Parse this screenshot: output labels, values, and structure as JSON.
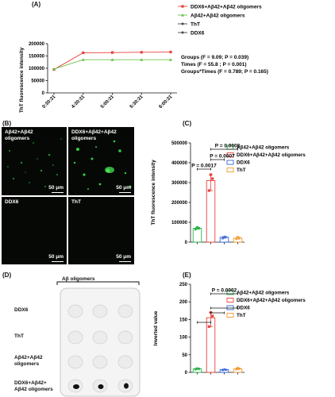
{
  "panels": {
    "a": "(A)",
    "b": "(B)",
    "c": "(C)",
    "d": "(D)",
    "e": "(E)"
  },
  "chart_data": [
    {
      "type": "line",
      "panel": "A",
      "categories": [
        "0:30:31",
        "4:30:31",
        "5:00:31",
        "5:30:31",
        "6:00:31"
      ],
      "ylabel": "ThT fluorescence intensity",
      "ylim": [
        0,
        200000
      ],
      "yticks": [
        "0",
        "50000",
        "100000",
        "150000",
        "200000"
      ],
      "series": [
        {
          "name": "DDX6+Aβ42+Aβ42 oligomers",
          "color": "#e8413c",
          "marker": "square",
          "values": [
            95000,
            163000,
            164000,
            165000,
            166000
          ]
        },
        {
          "name": "Aβ42+Aβ42 oligomers",
          "color": "#6cc24a",
          "marker": "triangle",
          "values": [
            97000,
            135000,
            135000,
            135000,
            135000
          ]
        },
        {
          "name": "ThT",
          "color": "#444444",
          "marker": "dot",
          "values": [
            null,
            null,
            null,
            null,
            null
          ]
        },
        {
          "name": "DDX6",
          "color": "#444444",
          "marker": "dot",
          "values": [
            null,
            null,
            null,
            null,
            null
          ]
        }
      ],
      "stats": [
        "Groups (F = 9.09; P = 0.039)",
        "Times (F = 55.8 ; P = 0.001)",
        "Groups*Times (F = 0.789; P = 0.165)"
      ]
    },
    {
      "type": "bar",
      "panel": "C",
      "categories": [
        "Aβ42+Aβ42 oligomers",
        "DDX6+Aβ42+Aβ42 oligomers",
        "DDX6",
        "ThT"
      ],
      "colors": [
        "#2bb24c",
        "#e8413c",
        "#3565d6",
        "#f29a2e"
      ],
      "values": [
        70000,
        310000,
        25000,
        20000
      ],
      "points": [
        [
          65000,
          75000,
          70000
        ],
        [
          260000,
          340000,
          320000
        ],
        [
          20000,
          28000,
          27000
        ],
        [
          15000,
          25000,
          20000
        ]
      ],
      "ylabel": "ThT fluorescence intensity",
      "ylim": [
        0,
        500000
      ],
      "yticks": [
        "0",
        "100000",
        "200000",
        "300000",
        "400000",
        "500000"
      ],
      "annotations": [
        "P = 0.0017",
        "P = 0.0007",
        "P = 0.0008"
      ]
    },
    {
      "type": "bar",
      "panel": "E",
      "categories": [
        "Aβ42+Aβ42 oligomers",
        "DDX6+Aβ42+Aβ42 oligomers",
        "DDX6",
        "ThT"
      ],
      "colors": [
        "#2bb24c",
        "#e8413c",
        "#3565d6",
        "#f29a2e"
      ],
      "values": [
        10,
        155,
        8,
        10
      ],
      "points": [
        [
          9,
          11,
          10
        ],
        [
          130,
          170,
          160
        ],
        [
          7,
          9,
          8
        ],
        [
          8,
          12,
          10
        ]
      ],
      "ylabel": "Inverted value",
      "ylim": [
        0,
        250
      ],
      "yticks": [
        "0",
        "50",
        "100",
        "150",
        "200",
        "250"
      ],
      "annotations": [
        "P = 0.0002"
      ]
    }
  ],
  "micrographs": {
    "tl": "Aβ42+Aβ42\noligomers",
    "tr": "DDX6+Aβ42+Aβ42\noligomers",
    "bl": "DDX6",
    "br": "ThT",
    "scale": "50 μm"
  },
  "dotblot": {
    "header": "Aβ oligomers",
    "rows": [
      "DDX6",
      "ThT",
      "Aβ42+Aβ42\noligomers",
      "DDX6+Aβ42+\nAβ42 oligomers"
    ]
  }
}
